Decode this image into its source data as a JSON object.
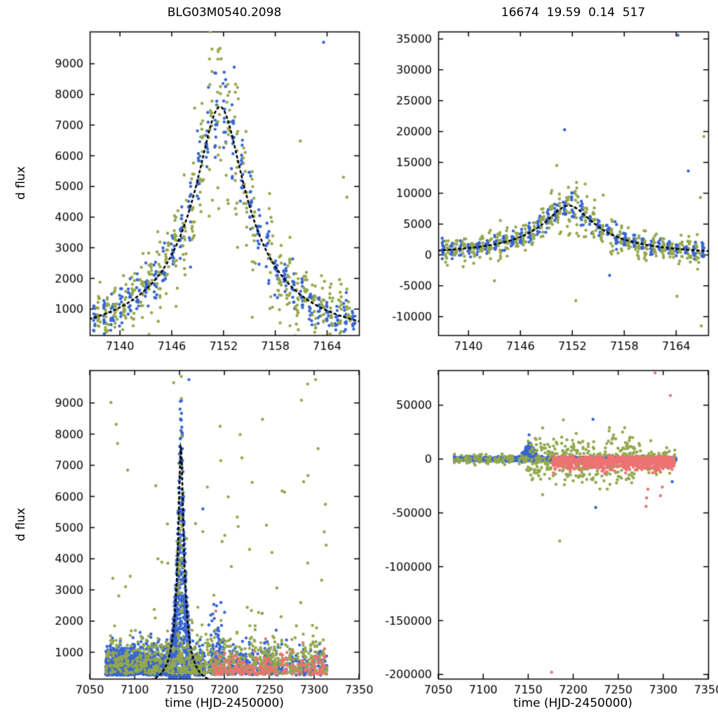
{
  "figure": {
    "background": "#ffffff",
    "palette": {
      "survey_blue": "#3a66d0",
      "survey_olive": "#94a84e",
      "survey_salmon": "#ed7372",
      "model_curve": "#000000",
      "axis": "#000000"
    }
  },
  "chart_data": [
    {
      "id": "top-left",
      "type": "scatter",
      "title": "BLG03M0540.2098",
      "ylabel": "d flux",
      "xlabel": "",
      "xlim": [
        7136.5,
        7167.7
      ],
      "ylim": [
        150,
        10050
      ],
      "xticks": [
        7140,
        7146,
        7152,
        7158,
        7164
      ],
      "yticks": [
        1000,
        2000,
        3000,
        4000,
        5000,
        6000,
        7000,
        8000,
        9000
      ],
      "grid": false,
      "legend": "none",
      "model": {
        "name": "paczynski-fit",
        "t0": 7151.6,
        "tE": 19.59,
        "u0": 0.14,
        "fs": 1226,
        "color": "#000000",
        "style": "dotted",
        "draw": true
      },
      "scatter": {
        "seed": 11,
        "groups": [
          {
            "color": "#3a66d0",
            "mode": "model",
            "xStart": 7137.1,
            "xEnd": 7167.4,
            "xStep": 1.0,
            "prob": 0.95,
            "perNight": 13,
            "xJitter": 0.18,
            "mulNoise": 0.11,
            "addNoise": 270
          },
          {
            "color": "#94a84e",
            "mode": "model",
            "xStart": 7137.5,
            "xEnd": 7167.4,
            "xStep": 1.0,
            "prob": 0.95,
            "perNight": 16,
            "xJitter": 0.22,
            "mulNoise": 0.21,
            "addNoise": 500
          }
        ],
        "outliers": [
          {
            "color": "#3a66d0",
            "x": 7163.6,
            "y": 9700
          },
          {
            "color": "#94a84e",
            "x": 7160.9,
            "y": 6480
          },
          {
            "color": "#94a84e",
            "x": 7165.9,
            "y": 5300
          },
          {
            "color": "#94a84e",
            "x": 7166.3,
            "y": 4650
          },
          {
            "color": "#94a84e",
            "x": 7159.7,
            "y": 3340
          },
          {
            "color": "#94a84e",
            "x": 7155.4,
            "y": 2280
          }
        ]
      }
    },
    {
      "id": "top-right",
      "type": "scatter",
      "title": "16674  19.59  0.14  517",
      "ylabel": "",
      "xlabel": "",
      "xlim": [
        7136.5,
        7167.7
      ],
      "ylim": [
        -13000,
        36200
      ],
      "xticks": [
        7140,
        7146,
        7152,
        7158,
        7164
      ],
      "yticks": [
        -10000,
        -5000,
        0,
        5000,
        10000,
        15000,
        20000,
        25000,
        30000,
        35000
      ],
      "grid": false,
      "legend": "none",
      "model": {
        "name": "paczynski-fit",
        "t0": 7151.6,
        "tE": 19.59,
        "u0": 0.14,
        "fs": 1290,
        "color": "#000000",
        "style": "dotted",
        "draw": true
      },
      "scatter": {
        "seed": 22,
        "groups": [
          {
            "color": "#3a66d0",
            "mode": "model",
            "xStart": 7137.1,
            "xEnd": 7167.4,
            "xStep": 1.0,
            "prob": 0.95,
            "perNight": 13,
            "xJitter": 0.18,
            "mulNoise": 0.13,
            "addNoise": 650
          },
          {
            "color": "#94a84e",
            "mode": "model",
            "xStart": 7137.5,
            "xEnd": 7167.4,
            "xStep": 1.0,
            "prob": 0.95,
            "perNight": 14,
            "xJitter": 0.22,
            "mulNoise": 0.26,
            "addNoise": 1050
          }
        ],
        "outliers": [
          {
            "color": "#3a66d0",
            "x": 7164.2,
            "y": 35600
          },
          {
            "color": "#3a66d0",
            "x": 7151.1,
            "y": 20300
          },
          {
            "color": "#3a66d0",
            "x": 7165.4,
            "y": 13600
          },
          {
            "color": "#94a84e",
            "x": 7167.2,
            "y": 19200
          },
          {
            "color": "#94a84e",
            "x": 7150.2,
            "y": 14500
          },
          {
            "color": "#94a84e",
            "x": 7166.8,
            "y": 9300
          },
          {
            "color": "#94a84e",
            "x": 7152.4,
            "y": -7400
          },
          {
            "color": "#94a84e",
            "x": 7166.9,
            "y": -11500
          },
          {
            "color": "#94a84e",
            "x": 7164.1,
            "y": -6700
          },
          {
            "color": "#3a66d0",
            "x": 7156.3,
            "y": -3300
          },
          {
            "color": "#94a84e",
            "x": 7143.0,
            "y": -4200
          }
        ]
      }
    },
    {
      "id": "bottom-left",
      "type": "scatter",
      "title": "",
      "ylabel": "d flux",
      "xlabel": "time (HJD-2450000)",
      "xlim": [
        7050,
        7350
      ],
      "ylim": [
        150,
        10050
      ],
      "xticks": [
        7050,
        7100,
        7150,
        7200,
        7250,
        7300,
        7350
      ],
      "yticks": [
        1000,
        2000,
        3000,
        4000,
        5000,
        6000,
        7000,
        8000,
        9000
      ],
      "grid": false,
      "legend": "none",
      "model": {
        "name": "paczynski-fit",
        "t0": 7151.6,
        "tE": 19.59,
        "u0": 0.14,
        "fs": 1226,
        "color": "#000000",
        "style": "dotted",
        "draw": true
      },
      "scatter": {
        "seed": 33,
        "groups": [
          {
            "color": "#3a66d0",
            "mode": "band",
            "xStart": 7068,
            "xEnd": 7140,
            "xStep": 1.0,
            "prob": 0.93,
            "perNight": 16,
            "xJitter": 0.3,
            "base": 260,
            "scale": 430
          },
          {
            "color": "#3a66d0",
            "mode": "column",
            "xStart": 7139,
            "xEnd": 7161,
            "xStep": 0.5,
            "prob": 1.0,
            "perNight": 18,
            "xJitter": 0.22,
            "gamma": 1.25,
            "colScale": 1.28
          },
          {
            "color": "#3a66d0",
            "mode": "band",
            "xStart": 7163,
            "xEnd": 7178,
            "xStep": 1.0,
            "prob": 0.8,
            "perNight": 10,
            "xJitter": 0.3,
            "base": 260,
            "scale": 420
          },
          {
            "color": "#3a66d0",
            "mode": "band",
            "xStart": 7183,
            "xEnd": 7200,
            "xStep": 1.0,
            "prob": 0.85,
            "perNight": 10,
            "xJitter": 0.3,
            "base": 280,
            "scale": 760
          },
          {
            "color": "#3a66d0",
            "mode": "band",
            "xStart": 7203,
            "xEnd": 7242,
            "xStep": 1.0,
            "prob": 0.55,
            "perNight": 7,
            "xJitter": 0.3,
            "base": 270,
            "scale": 420
          },
          {
            "color": "#3a66d0",
            "mode": "band",
            "xStart": 7245,
            "xEnd": 7253,
            "xStep": 1.0,
            "prob": 1.0,
            "perNight": 12,
            "xJitter": 0.35,
            "base": 290,
            "scale": 430
          },
          {
            "color": "#3a66d0",
            "mode": "band",
            "xStart": 7256,
            "xEnd": 7314,
            "xStep": 1.0,
            "prob": 0.5,
            "perNight": 5,
            "xJitter": 0.3,
            "base": 260,
            "scale": 380
          },
          {
            "color": "#94a84e",
            "mode": "band",
            "xStart": 7068,
            "xEnd": 7314,
            "xStep": 1.0,
            "prob": 0.7,
            "perNight": 5,
            "xJitter": 0.3,
            "base": 290,
            "scale": 560
          },
          {
            "color": "#94a84e",
            "mode": "column",
            "xStart": 7147.5,
            "xEnd": 7153.5,
            "xStep": 0.8,
            "prob": 1.0,
            "perNight": 7,
            "xJitter": 0.25,
            "gamma": 0.9,
            "colScale": 1.3
          },
          {
            "color": "#94a84e",
            "mode": "uniform",
            "xStart": 7070,
            "xEnd": 7314,
            "count": 85,
            "base": 300,
            "range": 9500,
            "gamma": 1.7
          },
          {
            "color": "#ed7372",
            "mode": "band",
            "xStart": 7188,
            "xEnd": 7312,
            "xStep": 2.0,
            "prob": 0.75,
            "perNight": 4,
            "xJitter": 0.5,
            "base": 280,
            "scale": 310
          }
        ],
        "outliers": [
          {
            "color": "#ed7372",
            "x": 7190.5,
            "y": 2320
          },
          {
            "color": "#ed7372",
            "x": 7246.0,
            "y": 1430
          },
          {
            "color": "#ed7372",
            "x": 7263.0,
            "y": 950
          },
          {
            "color": "#ed7372",
            "x": 7301.0,
            "y": 830
          },
          {
            "color": "#ed7372",
            "x": 7310.0,
            "y": 640
          },
          {
            "color": "#3a66d0",
            "x": 7160.5,
            "y": 9750
          },
          {
            "color": "#94a84e",
            "x": 7152.0,
            "y": 9850
          },
          {
            "color": "#94a84e",
            "x": 7143.5,
            "y": 9650
          },
          {
            "color": "#94a84e",
            "x": 7196.0,
            "y": 7150
          },
          {
            "color": "#94a84e",
            "x": 7200.5,
            "y": 4750
          },
          {
            "color": "#94a84e",
            "x": 7181.0,
            "y": 6300
          },
          {
            "color": "#3a66d0",
            "x": 7176.0,
            "y": 5600
          },
          {
            "color": "#94a84e",
            "x": 7231.0,
            "y": 6450
          },
          {
            "color": "#94a84e",
            "x": 7228.0,
            "y": 4300
          },
          {
            "color": "#94a84e",
            "x": 7253.0,
            "y": 4200
          },
          {
            "color": "#94a84e",
            "x": 7242.0,
            "y": 2250
          }
        ]
      }
    },
    {
      "id": "bottom-right",
      "type": "scatter",
      "title": "",
      "ylabel": "",
      "xlabel": "time (HJD-2450000)",
      "xlim": [
        7050,
        7350
      ],
      "ylim": [
        -204000,
        82500
      ],
      "xticks": [
        7050,
        7100,
        7150,
        7200,
        7250,
        7300,
        7350
      ],
      "yticks": [
        -200000,
        -150000,
        -100000,
        -50000,
        0,
        50000
      ],
      "grid": false,
      "legend": "none",
      "model": {
        "name": "paczynski-fit",
        "t0": 7151.6,
        "tE": 19.59,
        "u0": 0.14,
        "fs": 1226,
        "color": "#000000",
        "style": "dotted",
        "draw": false
      },
      "scatter": {
        "seed": 44,
        "groups": [
          {
            "color": "#3a66d0",
            "mode": "sym",
            "xStart": 7068,
            "xEnd": 7314,
            "xStep": 1.0,
            "prob": 0.92,
            "perNight": 9,
            "xJitter": 0.3,
            "scale": 900,
            "modelScale": 0
          },
          {
            "color": "#3a66d0",
            "mode": "sym",
            "xStart": 7143,
            "xEnd": 7159,
            "xStep": 0.45,
            "prob": 1.0,
            "perNight": 9,
            "xJitter": 0.2,
            "scale": 1400,
            "modelScale": 2.1
          },
          {
            "color": "#94a84e",
            "mode": "sym",
            "xStart": 7068,
            "xEnd": 7146,
            "xStep": 1.0,
            "prob": 0.5,
            "perNight": 3,
            "xJitter": 0.3,
            "scale": 2000,
            "modelScale": 0
          },
          {
            "color": "#94a84e",
            "mode": "sym",
            "xStart": 7148,
            "xEnd": 7268,
            "xStep": 1.0,
            "prob": 0.8,
            "perNight": 4,
            "xJitter": 0.3,
            "scale": 10500,
            "modelScale": 0
          },
          {
            "color": "#94a84e",
            "mode": "sym",
            "xStart": 7270,
            "xEnd": 7314,
            "xStep": 1.0,
            "prob": 0.6,
            "perNight": 3,
            "xJitter": 0.3,
            "scale": 6500,
            "modelScale": 0
          },
          {
            "color": "#ed7372",
            "mode": "neg",
            "xStart": 7178,
            "xEnd": 7312,
            "xStep": 1.0,
            "prob": 0.85,
            "perNight": 5,
            "xJitter": 0.3,
            "base": -300,
            "scale": 4800
          },
          {
            "color": "#ed7372",
            "mode": "sym",
            "xStart": 7178,
            "xEnd": 7312,
            "xStep": 1.0,
            "prob": 0.8,
            "perNight": 3,
            "xJitter": 0.3,
            "scale": 1300,
            "modelScale": 0
          }
        ],
        "outliers": [
          {
            "color": "#ed7372",
            "x": 7291,
            "y": 80000
          },
          {
            "color": "#ed7372",
            "x": 7308,
            "y": 59000
          },
          {
            "color": "#3a66d0",
            "x": 7222,
            "y": 37000
          },
          {
            "color": "#94a84e",
            "x": 7189,
            "y": 36500
          },
          {
            "color": "#3a66d0",
            "x": 7151,
            "y": 22500
          },
          {
            "color": "#94a84e",
            "x": 7185,
            "y": -76000
          },
          {
            "color": "#3a66d0",
            "x": 7225,
            "y": -45000
          },
          {
            "color": "#ed7372",
            "x": 7281,
            "y": -44000
          },
          {
            "color": "#ed7372",
            "x": 7281.6,
            "y": -36000
          },
          {
            "color": "#ed7372",
            "x": 7283,
            "y": -28000
          },
          {
            "color": "#ed7372",
            "x": 7297,
            "y": -34000
          },
          {
            "color": "#ed7372",
            "x": 7299,
            "y": -26000
          },
          {
            "color": "#3a66d0",
            "x": 7310,
            "y": -21000
          },
          {
            "color": "#94a84e",
            "x": 7265,
            "y": -22000
          },
          {
            "color": "#ed7372",
            "x": 7176,
            "y": -198000
          }
        ]
      }
    }
  ]
}
